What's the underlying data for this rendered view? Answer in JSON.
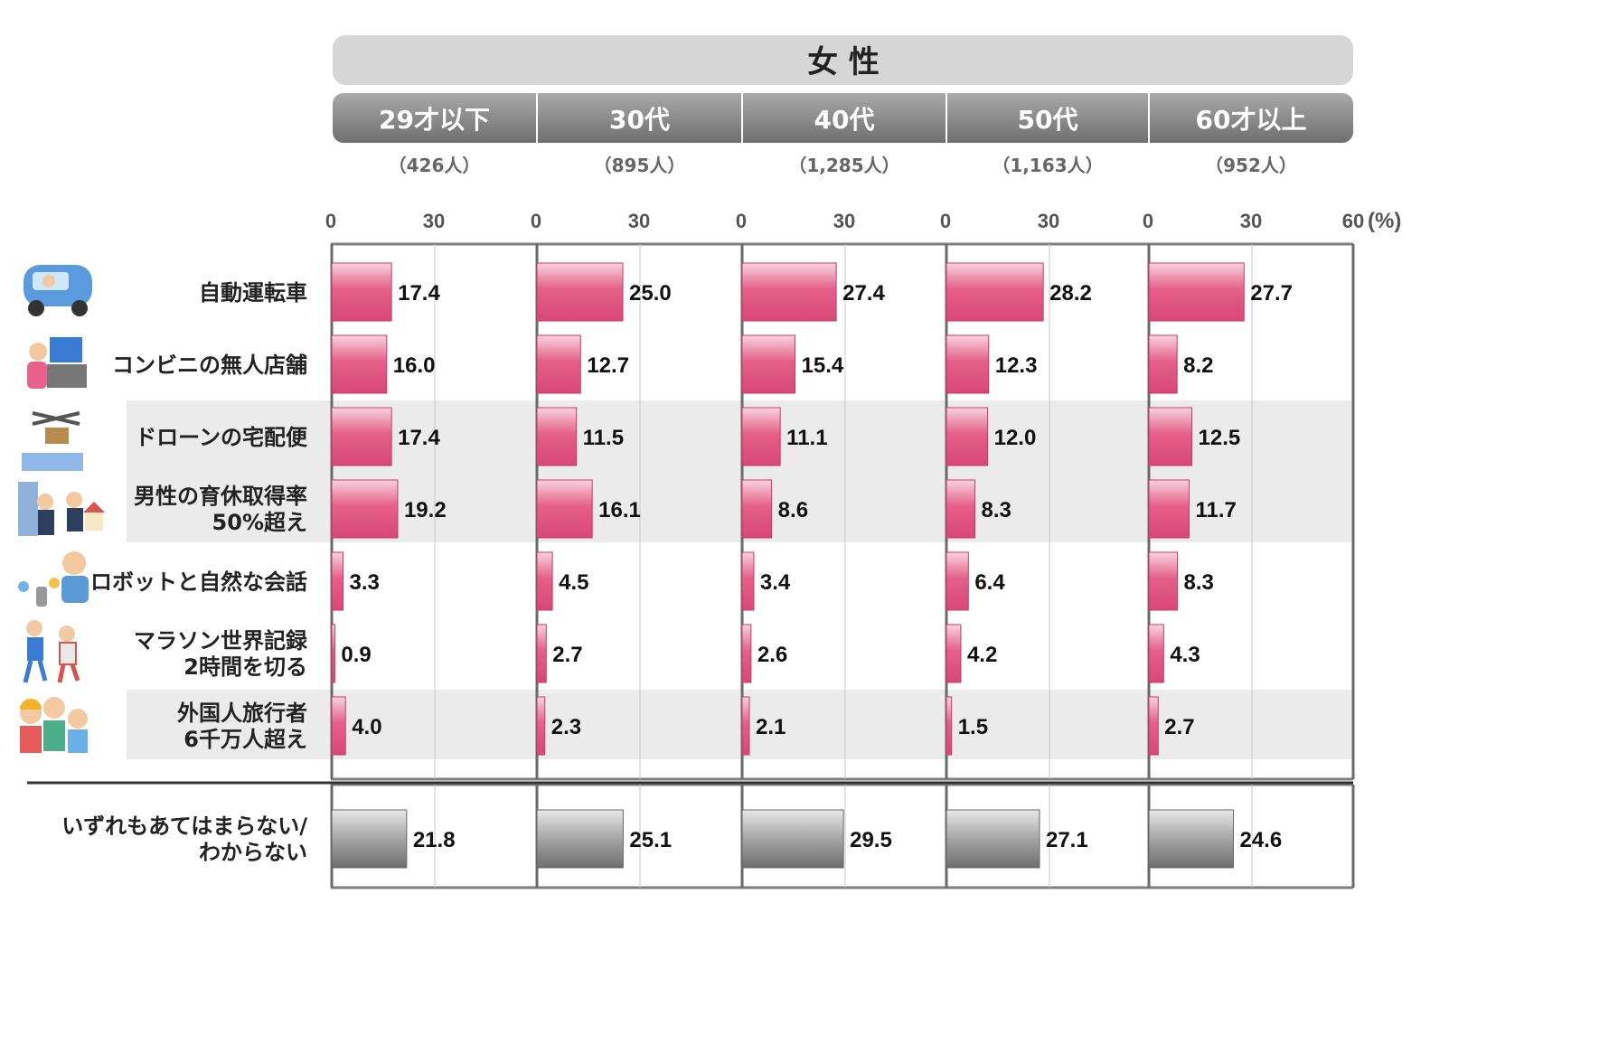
{
  "chart_data": {
    "type": "bar",
    "orientation": "horizontal",
    "title": "女 性",
    "unit": "(%)",
    "xlim": [
      0,
      60
    ],
    "ticks": [
      "0",
      "30",
      "60"
    ],
    "age_groups": [
      {
        "label": "29才以下",
        "n": "（426人）"
      },
      {
        "label": "30代",
        "n": "（895人）"
      },
      {
        "label": "40代",
        "n": "（1,285人）"
      },
      {
        "label": "50代",
        "n": "（1,163人）"
      },
      {
        "label": "60才以上",
        "n": "（952人）"
      }
    ],
    "categories": [
      {
        "label": [
          "自動運転車"
        ],
        "icon": "self-driving-car-icon",
        "values": [
          17.4,
          25.0,
          27.4,
          28.2,
          27.7
        ]
      },
      {
        "label": [
          "コンビニの無人店舗"
        ],
        "icon": "self-checkout-icon",
        "values": [
          16.0,
          12.7,
          15.4,
          12.3,
          8.2
        ]
      },
      {
        "label": [
          "ドローンの宅配便"
        ],
        "icon": "drone-delivery-icon",
        "values": [
          17.4,
          11.5,
          11.1,
          12.0,
          12.5
        ]
      },
      {
        "label": [
          "男性の育休取得率",
          "50%超え"
        ],
        "icon": "paternity-leave-icon",
        "values": [
          19.2,
          16.1,
          8.6,
          8.3,
          11.7
        ]
      },
      {
        "label": [
          "ロボットと自然な会話"
        ],
        "icon": "robot-conversation-icon",
        "values": [
          3.3,
          4.5,
          3.4,
          6.4,
          8.3
        ]
      },
      {
        "label": [
          "マラソン世界記録",
          "2時間を切る"
        ],
        "icon": "marathon-runners-icon",
        "values": [
          0.9,
          2.7,
          2.6,
          4.2,
          4.3
        ]
      },
      {
        "label": [
          "外国人旅行者",
          "6千万人超え"
        ],
        "icon": "foreign-tourists-icon",
        "values": [
          4.0,
          2.3,
          2.1,
          1.5,
          2.7
        ]
      }
    ],
    "none_row": {
      "label": [
        "いずれもあてはまらない/",
        "わからない"
      ],
      "values": [
        21.8,
        25.1,
        29.5,
        27.1,
        24.6
      ]
    },
    "colors": {
      "bar": "#e0507a",
      "bar_light": "#f4b7c9",
      "none_bar": "#8a8a8a",
      "header_bg": "#d6d6d6",
      "age_bg": "#8c8c8c",
      "stripe": "#ebebeb"
    },
    "grid": true
  }
}
